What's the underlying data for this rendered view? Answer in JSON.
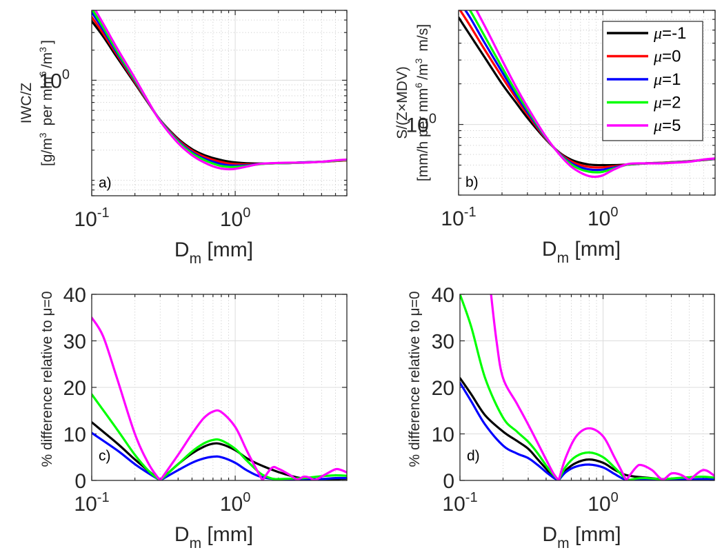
{
  "chart_data": [
    {
      "id": "a",
      "type": "line",
      "panel_label": "a)",
      "title": "",
      "xlabel": "D",
      "xlabel_sub": "m",
      "xlabel_unit": " [mm]",
      "ylabel_line1": "IWC/Z",
      "ylabel_line2": "[g/m^3 per mm^6/m^3]",
      "xscale": "log",
      "yscale": "log",
      "xlim": [
        0.1,
        6
      ],
      "ylim": [
        0.07,
        5
      ],
      "xticks": [
        {
          "value": 0.1,
          "base": "10",
          "exp": "-1"
        },
        {
          "value": 1,
          "base": "10",
          "exp": "0"
        }
      ],
      "yticks": [
        {
          "value": 1,
          "base": "10",
          "exp": "0"
        }
      ],
      "grid": true,
      "legend": false,
      "x": [
        0.1,
        0.12,
        0.15,
        0.2,
        0.25,
        0.3,
        0.4,
        0.5,
        0.6,
        0.7,
        0.8,
        0.9,
        1.0,
        1.2,
        1.5,
        2.0,
        2.5,
        3.0,
        4.0,
        5.0,
        6.0
      ],
      "series": [
        {
          "name": "μ=-1",
          "color": "#000000",
          "values": [
            3.9,
            2.75,
            1.7,
            0.93,
            0.58,
            0.4,
            0.26,
            0.205,
            0.18,
            0.167,
            0.159,
            0.154,
            0.151,
            0.148,
            0.147,
            0.148,
            0.149,
            0.151,
            0.153,
            0.156,
            0.158
          ]
        },
        {
          "name": "μ=0",
          "color": "#ff0000",
          "values": [
            4.3,
            2.95,
            1.8,
            0.96,
            0.585,
            0.4,
            0.254,
            0.198,
            0.173,
            0.16,
            0.152,
            0.147,
            0.145,
            0.144,
            0.146,
            0.148,
            0.149,
            0.151,
            0.153,
            0.156,
            0.158
          ]
        },
        {
          "name": "μ=1",
          "color": "#0000ff",
          "values": [
            4.8,
            3.2,
            1.88,
            0.99,
            0.59,
            0.398,
            0.248,
            0.191,
            0.166,
            0.153,
            0.145,
            0.141,
            0.14,
            0.141,
            0.146,
            0.148,
            0.149,
            0.151,
            0.153,
            0.157,
            0.159
          ]
        },
        {
          "name": "μ=2",
          "color": "#00ff00",
          "values": [
            5.2,
            3.4,
            1.96,
            1.01,
            0.595,
            0.395,
            0.243,
            0.186,
            0.161,
            0.147,
            0.139,
            0.136,
            0.136,
            0.139,
            0.145,
            0.148,
            0.149,
            0.15,
            0.153,
            0.157,
            0.159
          ]
        },
        {
          "name": "μ=5",
          "color": "#ff00ff",
          "values": [
            5.8,
            3.7,
            2.1,
            1.05,
            0.6,
            0.39,
            0.235,
            0.178,
            0.152,
            0.138,
            0.131,
            0.129,
            0.13,
            0.137,
            0.146,
            0.149,
            0.15,
            0.15,
            0.153,
            0.158,
            0.161
          ]
        }
      ]
    },
    {
      "id": "b",
      "type": "line",
      "panel_label": "b)",
      "title": "",
      "xlabel": "D",
      "xlabel_sub": "m",
      "xlabel_unit": " [mm]",
      "ylabel_line1": "S/(Z×MDV)",
      "ylabel_line2": "[mm/h per mm^6/m^3 m/s]",
      "xscale": "log",
      "yscale": "log",
      "xlim": [
        0.1,
        6
      ],
      "ylim": [
        0.3,
        7
      ],
      "xticks": [
        {
          "value": 0.1,
          "base": "10",
          "exp": "-1"
        },
        {
          "value": 1,
          "base": "10",
          "exp": "0"
        }
      ],
      "yticks": [
        {
          "value": 1,
          "base": "10",
          "exp": "0"
        }
      ],
      "grid": true,
      "legend": true,
      "legend_location": "top-right",
      "legend_entries": [
        {
          "mu": "μ",
          "text": "=-1",
          "color": "#000000"
        },
        {
          "mu": "μ",
          "text": "=0",
          "color": "#ff0000"
        },
        {
          "mu": "μ",
          "text": "=1",
          "color": "#0000ff"
        },
        {
          "mu": "μ",
          "text": "=2",
          "color": "#00ff00"
        },
        {
          "mu": "μ",
          "text": "=5",
          "color": "#ff00ff"
        }
      ],
      "x": [
        0.1,
        0.12,
        0.15,
        0.2,
        0.25,
        0.3,
        0.4,
        0.5,
        0.6,
        0.7,
        0.8,
        0.9,
        1.0,
        1.2,
        1.5,
        2.0,
        2.5,
        3.0,
        4.0,
        5.0,
        6.0
      ],
      "series": [
        {
          "name": "μ=-1",
          "color": "#000000",
          "values": [
            6.2,
            4.6,
            3.2,
            2.0,
            1.45,
            1.12,
            0.78,
            0.62,
            0.55,
            0.52,
            0.505,
            0.5,
            0.5,
            0.5,
            0.505,
            0.515,
            0.52,
            0.525,
            0.535,
            0.545,
            0.555
          ]
        },
        {
          "name": "μ=0",
          "color": "#ff0000",
          "values": [
            7.3,
            5.4,
            3.65,
            2.25,
            1.57,
            1.19,
            0.79,
            0.615,
            0.535,
            0.5,
            0.485,
            0.48,
            0.482,
            0.49,
            0.505,
            0.515,
            0.52,
            0.525,
            0.535,
            0.547,
            0.556
          ]
        },
        {
          "name": "μ=1",
          "color": "#0000ff",
          "values": [
            8.3,
            6.2,
            4.1,
            2.45,
            1.66,
            1.24,
            0.8,
            0.61,
            0.52,
            0.482,
            0.465,
            0.46,
            0.463,
            0.48,
            0.505,
            0.515,
            0.518,
            0.523,
            0.533,
            0.548,
            0.557
          ]
        },
        {
          "name": "μ=2",
          "color": "#00ff00",
          "values": [
            9.3,
            7.0,
            4.6,
            2.65,
            1.75,
            1.29,
            0.81,
            0.605,
            0.508,
            0.465,
            0.447,
            0.442,
            0.446,
            0.472,
            0.505,
            0.515,
            0.517,
            0.522,
            0.532,
            0.549,
            0.558
          ]
        },
        {
          "name": "μ=5",
          "color": "#ff00ff",
          "values": [
            11.0,
            8.5,
            5.5,
            3.0,
            1.9,
            1.35,
            0.82,
            0.6,
            0.49,
            0.44,
            0.415,
            0.41,
            0.42,
            0.465,
            0.51,
            0.515,
            0.515,
            0.52,
            0.53,
            0.55,
            0.56
          ]
        }
      ]
    },
    {
      "id": "c",
      "type": "line",
      "panel_label": "c)",
      "title": "",
      "xlabel": "D",
      "xlabel_sub": "m",
      "xlabel_unit": " [mm]",
      "ylabel_line1": "% difference relative to μ=0",
      "xscale": "log",
      "yscale": "linear",
      "xlim": [
        0.1,
        6
      ],
      "ylim": [
        0,
        40
      ],
      "xticks": [
        {
          "value": 0.1,
          "base": "10",
          "exp": "-1"
        },
        {
          "value": 1,
          "base": "10",
          "exp": "0"
        }
      ],
      "yticks": [
        {
          "value": 0,
          "label": "0"
        },
        {
          "value": 10,
          "label": "10"
        },
        {
          "value": 20,
          "label": "20"
        },
        {
          "value": 30,
          "label": "30"
        },
        {
          "value": 40,
          "label": "40"
        }
      ],
      "grid": true,
      "legend": false,
      "series": [
        {
          "name": "μ=-1",
          "color": "#000000",
          "x": [
            0.1,
            0.15,
            0.2,
            0.25,
            0.3,
            0.4,
            0.5,
            0.6,
            0.7,
            0.8,
            1.0,
            1.2,
            1.5,
            2.0,
            2.5,
            3.0,
            4.0,
            5.0,
            6.0
          ],
          "values": [
            12.5,
            8.0,
            4.5,
            2.0,
            0.0,
            3.5,
            5.8,
            7.2,
            7.9,
            7.8,
            6.5,
            4.8,
            3.3,
            1.8,
            0.9,
            0.4,
            0.2,
            0.3,
            0.4
          ]
        },
        {
          "name": "μ=1",
          "color": "#0000ff",
          "x": [
            0.1,
            0.15,
            0.2,
            0.25,
            0.3,
            0.4,
            0.5,
            0.6,
            0.7,
            0.8,
            1.0,
            1.2,
            1.5,
            2.0,
            2.5,
            3.0,
            4.0,
            5.0,
            6.0
          ],
          "values": [
            10.2,
            6.5,
            3.5,
            1.5,
            0.0,
            2.2,
            3.8,
            4.7,
            5.1,
            5.0,
            3.8,
            2.2,
            0.8,
            0.2,
            0.1,
            0.1,
            0.3,
            0.5,
            0.5
          ]
        },
        {
          "name": "μ=2",
          "color": "#00ff00",
          "x": [
            0.1,
            0.15,
            0.2,
            0.25,
            0.3,
            0.4,
            0.5,
            0.6,
            0.7,
            0.8,
            1.0,
            1.2,
            1.5,
            1.8,
            2.0,
            2.5,
            3.0,
            4.0,
            5.0,
            6.0
          ],
          "values": [
            18.5,
            11.0,
            5.5,
            2.0,
            0.0,
            3.5,
            6.2,
            7.9,
            8.7,
            8.6,
            6.8,
            4.3,
            1.5,
            0.4,
            0.3,
            0.4,
            0.5,
            0.9,
            1.1,
            1.0
          ]
        },
        {
          "name": "μ=5",
          "color": "#ff00ff",
          "x": [
            0.1,
            0.12,
            0.15,
            0.2,
            0.25,
            0.3,
            0.4,
            0.5,
            0.6,
            0.7,
            0.8,
            1.0,
            1.2,
            1.4,
            1.55,
            1.8,
            2.0,
            2.4,
            2.7,
            3.0,
            3.3,
            3.6,
            4.2,
            5.0,
            5.5,
            6.0
          ],
          "values": [
            35.0,
            31.0,
            22.0,
            10.0,
            3.5,
            0.0,
            5.5,
            10.0,
            13.3,
            14.8,
            14.7,
            11.5,
            6.5,
            2.5,
            0.0,
            2.7,
            2.5,
            1.2,
            0.2,
            0.8,
            0.6,
            0.1,
            1.2,
            2.4,
            2.2,
            1.7
          ]
        }
      ]
    },
    {
      "id": "d",
      "type": "line",
      "panel_label": "d)",
      "title": "",
      "xlabel": "D",
      "xlabel_sub": "m",
      "xlabel_unit": " [mm]",
      "ylabel_line1": "% difference relative to μ=0",
      "xscale": "log",
      "yscale": "linear",
      "xlim": [
        0.1,
        6
      ],
      "ylim": [
        0,
        40
      ],
      "xticks": [
        {
          "value": 0.1,
          "base": "10",
          "exp": "-1"
        },
        {
          "value": 1,
          "base": "10",
          "exp": "0"
        }
      ],
      "yticks": [
        {
          "value": 0,
          "label": "0"
        },
        {
          "value": 10,
          "label": "10"
        },
        {
          "value": 20,
          "label": "20"
        },
        {
          "value": 30,
          "label": "30"
        },
        {
          "value": 40,
          "label": "40"
        }
      ],
      "grid": true,
      "legend": false,
      "series": [
        {
          "name": "μ=-1",
          "color": "#000000",
          "x": [
            0.1,
            0.12,
            0.15,
            0.2,
            0.25,
            0.3,
            0.35,
            0.4,
            0.45,
            0.49,
            0.55,
            0.65,
            0.8,
            1.0,
            1.2,
            1.4,
            1.6,
            2.0,
            2.5,
            3.0,
            4.0,
            5.0,
            6.0
          ],
          "values": [
            22.0,
            18.5,
            14.0,
            10.5,
            8.5,
            6.8,
            4.5,
            2.5,
            0.8,
            0.0,
            2.2,
            3.8,
            4.5,
            3.8,
            2.3,
            1.3,
            0.9,
            0.6,
            0.3,
            0.2,
            0.1,
            0.1,
            0.2
          ]
        },
        {
          "name": "μ=1",
          "color": "#0000ff",
          "x": [
            0.1,
            0.12,
            0.15,
            0.2,
            0.25,
            0.3,
            0.35,
            0.4,
            0.45,
            0.49,
            0.55,
            0.65,
            0.8,
            1.0,
            1.2,
            1.4,
            1.6,
            2.0,
            2.5,
            3.0,
            4.0,
            5.0,
            6.0
          ],
          "values": [
            21.0,
            17.0,
            12.0,
            7.5,
            5.8,
            4.8,
            3.3,
            1.8,
            0.6,
            0.0,
            1.8,
            3.0,
            3.4,
            2.8,
            1.4,
            0.3,
            0.1,
            0.2,
            0.1,
            0.1,
            0.2,
            0.3,
            0.2
          ]
        },
        {
          "name": "μ=2",
          "color": "#00ff00",
          "x": [
            0.1,
            0.12,
            0.15,
            0.2,
            0.25,
            0.3,
            0.35,
            0.4,
            0.45,
            0.49,
            0.55,
            0.65,
            0.8,
            1.0,
            1.2,
            1.4,
            1.5,
            1.7,
            2.0,
            2.5,
            3.0,
            4.0,
            5.0,
            6.0
          ],
          "values": [
            40.0,
            33.0,
            22.0,
            13.5,
            10.5,
            8.3,
            5.8,
            3.2,
            1.2,
            0.0,
            3.0,
            5.2,
            6.0,
            5.0,
            2.8,
            0.7,
            0.1,
            0.4,
            0.5,
            0.3,
            0.4,
            0.7,
            0.8,
            0.6
          ]
        },
        {
          "name": "μ=5",
          "color": "#ff00ff",
          "x": [
            0.165,
            0.18,
            0.2,
            0.25,
            0.3,
            0.35,
            0.4,
            0.45,
            0.49,
            0.55,
            0.65,
            0.8,
            1.0,
            1.2,
            1.4,
            1.45,
            1.7,
            1.85,
            2.2,
            2.6,
            3.0,
            3.5,
            4.0,
            4.8,
            5.3,
            6.0
          ],
          "values": [
            40.0,
            30.0,
            22.0,
            16.5,
            12.0,
            8.0,
            4.5,
            1.5,
            0.0,
            5.0,
            9.5,
            11.2,
            9.5,
            5.0,
            1.0,
            0.0,
            2.8,
            3.3,
            2.2,
            0.2,
            1.5,
            1.2,
            0.0,
            2.0,
            2.1,
            1.0
          ]
        }
      ]
    }
  ]
}
